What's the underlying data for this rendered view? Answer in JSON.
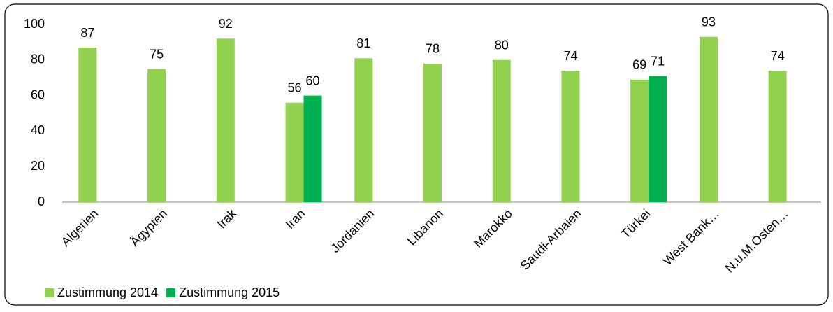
{
  "chart_data": {
    "type": "bar",
    "categories": [
      "Algerien",
      "Ägypten",
      "Irak",
      "Iran",
      "Jordanien",
      "Libanon",
      "Marokko",
      "Saudi-Arbaien",
      "Türkei",
      "West Bank…",
      "N.u.M.Osten…"
    ],
    "series": [
      {
        "name": "Zustimmung 2014",
        "color": "#92d050",
        "values": [
          87,
          75,
          92,
          56,
          81,
          78,
          80,
          74,
          69,
          93,
          74
        ]
      },
      {
        "name": "Zustimmung 2015",
        "color": "#00b050",
        "values": [
          null,
          null,
          null,
          60,
          null,
          null,
          null,
          null,
          71,
          null,
          null
        ]
      }
    ],
    "ylim": [
      0,
      100
    ],
    "yticks": [
      0,
      20,
      40,
      60,
      80,
      100
    ],
    "grid": false,
    "legend": "bottom-left"
  }
}
